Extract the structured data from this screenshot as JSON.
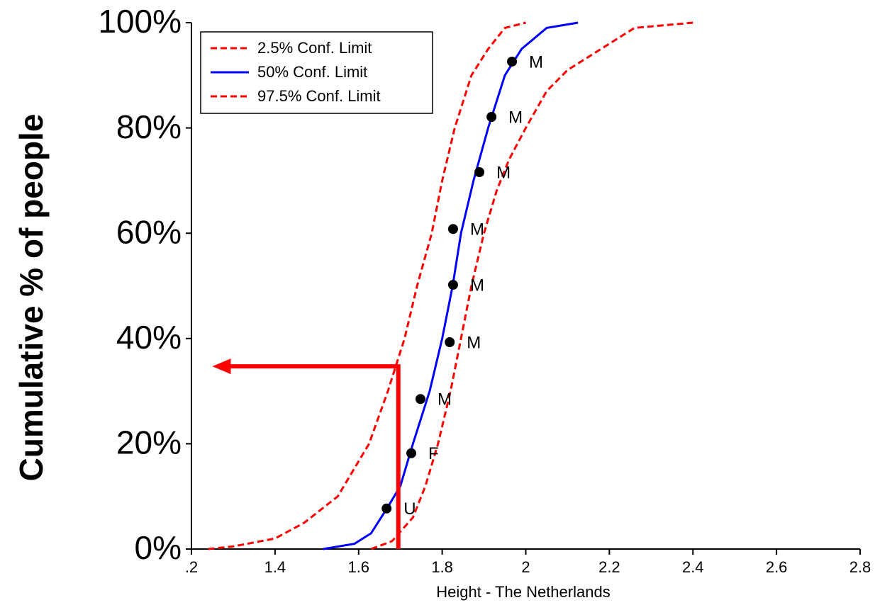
{
  "chart_data": {
    "type": "line",
    "xlabel": "Height - The Netherlands",
    "ylabel": "Cumulative % of people",
    "xlim": [
      1.2,
      2.8
    ],
    "ylim": [
      0,
      100
    ],
    "xticks": [
      {
        "value": 1.2,
        "label": ".2"
      },
      1.4,
      1.6,
      1.8,
      2,
      2.2,
      2.4,
      2.6,
      2.8
    ],
    "yticks": [
      {
        "value": 0,
        "label": "0%"
      },
      {
        "value": 20,
        "label": "20%"
      },
      {
        "value": 40,
        "label": "40%"
      },
      {
        "value": 60,
        "label": "60%"
      },
      {
        "value": 80,
        "label": "80%"
      },
      {
        "value": 100,
        "label": "100%"
      }
    ],
    "legend": "upper left",
    "series": [
      {
        "name": "2.5% Conf. Limit",
        "color": "#ff0000",
        "dashed": true,
        "x": [
          1.24,
          1.3,
          1.4,
          1.47,
          1.55,
          1.625,
          1.67,
          1.71,
          1.74,
          1.775,
          1.8,
          1.83,
          1.87,
          1.91,
          1.95,
          2.0
        ],
        "values": [
          0,
          0.5,
          2,
          5,
          10,
          20,
          30,
          40,
          50,
          60,
          70,
          80,
          90,
          95,
          99,
          100
        ]
      },
      {
        "name": "50% Conf. Limit",
        "color": "#0000ff",
        "dashed": false,
        "x": [
          1.515,
          1.59,
          1.63,
          1.67,
          1.7,
          1.73,
          1.77,
          1.8,
          1.825,
          1.845,
          1.875,
          1.91,
          1.95,
          1.99,
          2.05,
          2.125
        ],
        "values": [
          0,
          1,
          3,
          8,
          12,
          20,
          30,
          40,
          50,
          60,
          70,
          80,
          90,
          95,
          99,
          100
        ]
      },
      {
        "name": "97.5% Conf. Limit",
        "color": "#ff0000",
        "dashed": true,
        "x": [
          1.63,
          1.68,
          1.73,
          1.76,
          1.79,
          1.82,
          1.845,
          1.87,
          1.9,
          1.93,
          1.96,
          2.0,
          2.05,
          2.1,
          2.18,
          2.26,
          2.4
        ],
        "values": [
          0,
          1.5,
          6,
          12,
          20,
          30,
          40,
          50,
          60,
          68,
          74,
          80,
          87,
          91,
          95,
          99,
          100
        ]
      }
    ],
    "points": {
      "color": "#000000",
      "x": [
        1.667,
        1.726,
        1.748,
        1.818,
        1.826,
        1.826,
        1.889,
        1.918,
        1.967
      ],
      "values": [
        7.7,
        18.2,
        28.5,
        39.3,
        50.2,
        60.8,
        71.6,
        82.1,
        92.6
      ],
      "labels": [
        "U",
        "F",
        "M",
        "M",
        "M",
        "M",
        "M",
        "M",
        "M"
      ]
    },
    "marker_line": {
      "x": 1.695,
      "y": 34.7,
      "to_x": 1.25,
      "color": "#ff0000"
    }
  }
}
